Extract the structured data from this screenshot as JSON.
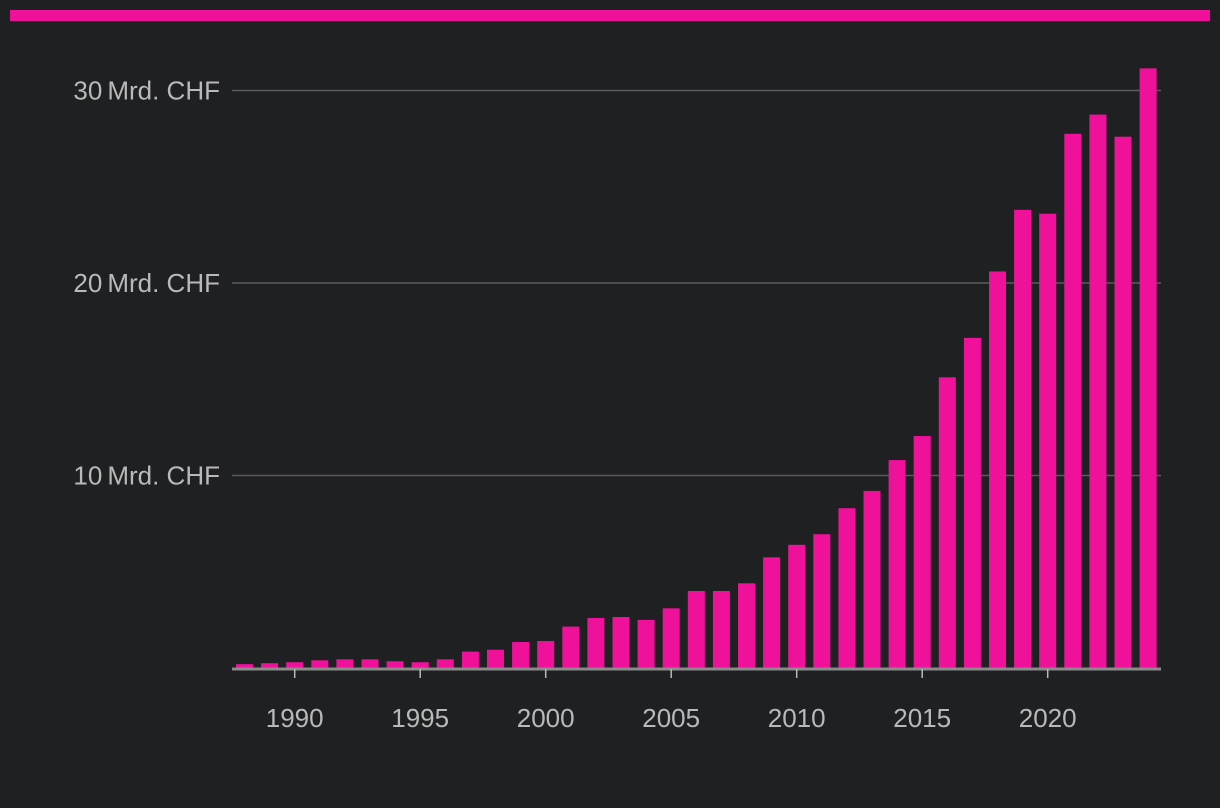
{
  "colors": {
    "background": "#1f2022",
    "accent": "#f0119a",
    "bar": "#f0119a",
    "gridline": "#5a5a5c",
    "axis": "#8a8a8a",
    "text": "#b9b9b9"
  },
  "chart_data": {
    "type": "bar",
    "title": "",
    "xlabel": "",
    "ylabel": "",
    "unit": "Mrd. CHF",
    "categories": [
      1988,
      1989,
      1990,
      1991,
      1992,
      1993,
      1994,
      1995,
      1996,
      1997,
      1998,
      1999,
      2000,
      2001,
      2002,
      2003,
      2004,
      2005,
      2006,
      2007,
      2008,
      2009,
      2010,
      2011,
      2012,
      2013,
      2014,
      2015,
      2016,
      2017,
      2018,
      2019,
      2020,
      2021,
      2022,
      2023,
      2024
    ],
    "values": [
      0.2,
      0.25,
      0.3,
      0.4,
      0.45,
      0.45,
      0.35,
      0.3,
      0.45,
      0.85,
      0.95,
      1.35,
      1.4,
      2.15,
      2.6,
      2.65,
      2.5,
      3.1,
      4.0,
      4.0,
      4.4,
      5.75,
      6.4,
      6.95,
      8.3,
      9.2,
      10.8,
      12.05,
      15.1,
      17.15,
      20.6,
      23.8,
      23.6,
      27.75,
      28.75,
      27.6,
      31.15
    ],
    "ylim": [
      0,
      31.5
    ],
    "y_ticks": [
      {
        "value": 10,
        "number": "10",
        "unit": "Mrd. CHF"
      },
      {
        "value": 20,
        "number": "20",
        "unit": "Mrd. CHF"
      },
      {
        "value": 30,
        "number": "30",
        "unit": "Mrd. CHF"
      }
    ],
    "x_tick_labels": [
      "1990",
      "1995",
      "2000",
      "2005",
      "2010",
      "2015",
      "2020"
    ],
    "grid": true,
    "legend": "none"
  }
}
